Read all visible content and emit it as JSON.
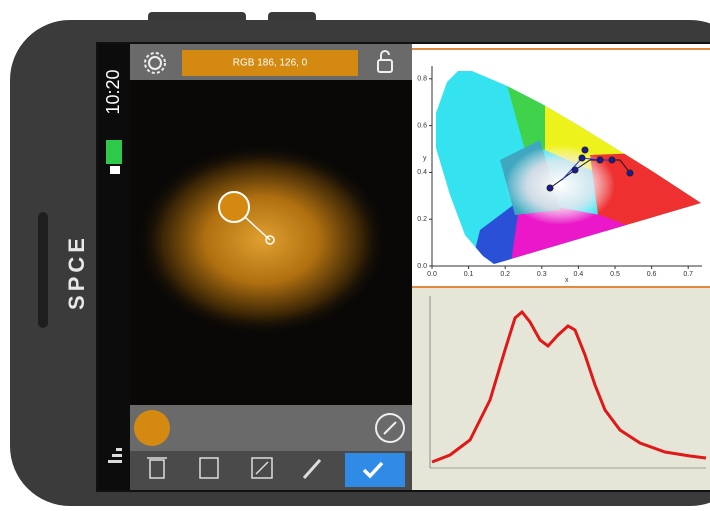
{
  "status": {
    "time": "10:20"
  },
  "brand": "SPCE",
  "toolbar": {
    "rgb_label": "RGB 186, 126, 0"
  },
  "cie_chart": {
    "x_label": "x",
    "y_label": "y",
    "xlim": [
      0,
      0.75
    ],
    "ylim": [
      0,
      0.9
    ],
    "xticks": [
      {
        "value": 0,
        "label": "0.0"
      },
      0.1,
      0.2,
      0.3,
      0.4,
      0.5,
      0.6,
      0.7
    ],
    "yticks": [
      {
        "value": 0,
        "label": "0.0"
      },
      0.2,
      0.4,
      0.6,
      0.8
    ]
  }
}
